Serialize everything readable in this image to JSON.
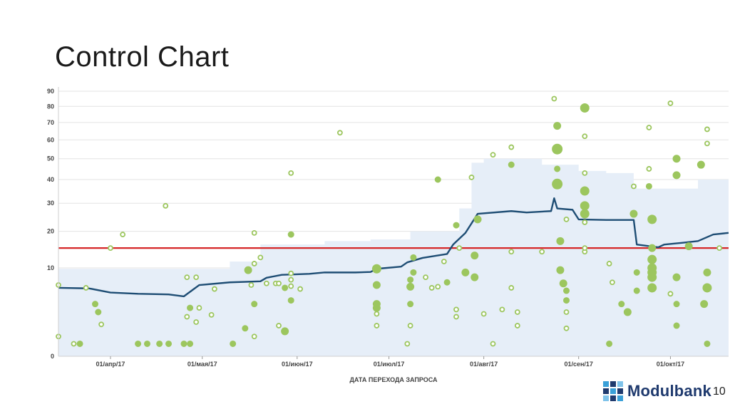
{
  "slide": {
    "title": "Control Chart",
    "page_number": "10",
    "brand": "Modulbank"
  },
  "colors": {
    "band": "#e6eef8",
    "rolling_line": "#1e4d74",
    "threshold": "#d62728",
    "point": "#9cc65e"
  },
  "chart_data": {
    "type": "scatter",
    "title": "",
    "xlabel": "ДАТА ПЕРЕХОДА ЗАПРОСА",
    "ylabel": "",
    "y_scale": "sqrt",
    "ylim": [
      0,
      90
    ],
    "xlim": [
      "2017-03-15",
      "2017-10-20"
    ],
    "y_ticks": [
      0,
      10,
      20,
      30,
      40,
      50,
      60,
      70,
      80,
      90
    ],
    "y_tick_labels": [
      "0",
      "10",
      "20",
      "30",
      "40",
      "50",
      "60",
      "70",
      "80",
      "90"
    ],
    "x_ticks": [
      "2017-04-01",
      "2017-05-01",
      "2017-06-01",
      "2017-07-01",
      "2017-08-01",
      "2017-09-01",
      "2017-10-01"
    ],
    "x_tick_labels": [
      "01/апр/17",
      "01/мая/17",
      "01/июн/17",
      "01/июл/17",
      "01/авг/17",
      "01/сен/17",
      "01/окт/17"
    ],
    "grid": true,
    "threshold": 15,
    "rolling_average": [
      [
        "2017-03-15",
        6.0
      ],
      [
        "2017-03-25",
        5.9
      ],
      [
        "2017-04-01",
        5.2
      ],
      [
        "2017-04-10",
        5.0
      ],
      [
        "2017-04-20",
        4.9
      ],
      [
        "2017-04-25",
        4.6
      ],
      [
        "2017-04-28",
        5.7
      ],
      [
        "2017-04-30",
        6.5
      ],
      [
        "2017-05-10",
        7.0
      ],
      [
        "2017-05-20",
        7.2
      ],
      [
        "2017-05-22",
        7.9
      ],
      [
        "2017-05-27",
        8.5
      ],
      [
        "2017-06-05",
        8.7
      ],
      [
        "2017-06-10",
        9.0
      ],
      [
        "2017-06-20",
        9.0
      ],
      [
        "2017-06-25",
        9.1
      ],
      [
        "2017-06-27",
        9.8
      ],
      [
        "2017-07-05",
        10.3
      ],
      [
        "2017-07-07",
        11.3
      ],
      [
        "2017-07-12",
        12.4
      ],
      [
        "2017-07-20",
        13.4
      ],
      [
        "2017-07-22",
        16.0
      ],
      [
        "2017-07-26",
        19.5
      ],
      [
        "2017-07-30",
        26.0
      ],
      [
        "2017-08-10",
        27.0
      ],
      [
        "2017-08-15",
        26.5
      ],
      [
        "2017-08-23",
        27.0
      ],
      [
        "2017-08-24",
        32.0
      ],
      [
        "2017-08-25",
        28.0
      ],
      [
        "2017-08-30",
        27.5
      ],
      [
        "2017-09-01",
        24.0
      ],
      [
        "2017-09-10",
        23.8
      ],
      [
        "2017-09-19",
        23.8
      ],
      [
        "2017-09-20",
        16.0
      ],
      [
        "2017-09-27",
        15.2
      ],
      [
        "2017-09-29",
        16.0
      ],
      [
        "2017-10-05",
        16.5
      ],
      [
        "2017-10-10",
        17.0
      ],
      [
        "2017-10-15",
        19.0
      ],
      [
        "2017-10-20",
        19.5
      ]
    ],
    "std_band": [
      [
        "2017-03-15",
        0,
        9.8
      ],
      [
        "2017-04-28",
        0,
        9.8
      ],
      [
        "2017-05-10",
        0,
        11.5
      ],
      [
        "2017-05-20",
        0,
        16.0
      ],
      [
        "2017-06-10",
        0,
        17.0
      ],
      [
        "2017-06-25",
        0,
        17.5
      ],
      [
        "2017-07-08",
        0,
        20.0
      ],
      [
        "2017-07-24",
        0,
        28.0
      ],
      [
        "2017-07-28",
        0,
        48.0
      ],
      [
        "2017-08-01",
        0,
        50.0
      ],
      [
        "2017-08-15",
        0,
        50.0
      ],
      [
        "2017-08-20",
        0,
        47.0
      ],
      [
        "2017-09-01",
        0,
        44.0
      ],
      [
        "2017-09-10",
        0,
        43.0
      ],
      [
        "2017-09-19",
        0,
        38.0
      ],
      [
        "2017-09-20",
        0,
        36.0
      ],
      [
        "2017-10-10",
        0,
        40.0
      ],
      [
        "2017-10-20",
        0,
        42.0
      ]
    ],
    "points": [
      [
        0.0,
        6.5,
        3
      ],
      [
        0.0,
        0.5,
        3
      ],
      [
        5,
        0.2,
        3
      ],
      [
        7,
        0.2,
        4
      ],
      [
        9,
        6.0,
        3
      ],
      [
        12,
        3.5,
        4
      ],
      [
        13,
        2.5,
        4
      ],
      [
        14,
        1.3,
        3
      ],
      [
        17,
        15.0,
        3
      ],
      [
        21,
        19.0,
        3
      ],
      [
        26,
        0.2,
        4
      ],
      [
        29,
        0.2,
        4
      ],
      [
        33,
        0.2,
        4
      ],
      [
        35,
        29.0,
        3
      ],
      [
        36,
        0.2,
        4
      ],
      [
        41,
        0.2,
        4
      ],
      [
        42,
        8.0,
        3
      ],
      [
        42,
        2.0,
        3
      ],
      [
        43,
        3.0,
        4
      ],
      [
        43,
        0.2,
        4
      ],
      [
        45,
        8.0,
        3
      ],
      [
        45,
        1.5,
        3
      ],
      [
        46,
        3.0,
        3
      ],
      [
        50,
        2.2,
        3
      ],
      [
        51,
        5.8,
        3
      ],
      [
        57,
        0.2,
        4
      ],
      [
        61,
        1.0,
        4
      ],
      [
        62,
        9.5,
        5
      ],
      [
        63,
        6.5,
        3
      ],
      [
        64,
        3.5,
        4
      ],
      [
        64,
        11.0,
        3
      ],
      [
        64,
        0.5,
        3
      ],
      [
        64,
        19.5,
        3
      ],
      [
        66,
        12.5,
        3
      ],
      [
        68,
        6.8,
        3
      ],
      [
        71,
        6.8,
        3
      ],
      [
        72,
        1.2,
        3
      ],
      [
        72,
        6.8,
        3
      ],
      [
        74,
        6.0,
        4
      ],
      [
        74,
        0.8,
        5
      ],
      [
        76,
        43.0,
        3
      ],
      [
        76,
        7.5,
        3
      ],
      [
        76,
        8.8,
        3
      ],
      [
        76,
        6.3,
        3
      ],
      [
        76,
        4.0,
        4
      ],
      [
        76,
        19.0,
        4
      ],
      [
        79,
        5.8,
        3
      ],
      [
        92,
        64.0,
        3
      ],
      [
        104,
        9.8,
        6
      ],
      [
        104,
        6.5,
        5
      ],
      [
        104,
        3.5,
        5
      ],
      [
        104,
        1.2,
        3
      ],
      [
        104,
        2.3,
        3
      ],
      [
        104,
        3.0,
        5
      ],
      [
        114,
        0.2,
        3
      ],
      [
        115,
        1.2,
        3
      ],
      [
        115,
        3.5,
        4
      ],
      [
        115,
        7.5,
        4
      ],
      [
        115,
        6.2,
        5
      ],
      [
        116,
        9.0,
        4
      ],
      [
        116,
        12.5,
        4
      ],
      [
        120,
        8.0,
        3
      ],
      [
        122,
        6.0,
        3
      ],
      [
        124,
        6.2,
        3
      ],
      [
        124,
        40.0,
        4
      ],
      [
        126,
        11.5,
        3
      ],
      [
        127,
        7.0,
        4
      ],
      [
        130,
        22.0,
        4
      ],
      [
        130,
        2.8,
        3
      ],
      [
        130,
        2.0,
        3
      ],
      [
        131,
        15.0,
        3
      ],
      [
        133,
        9.0,
        5
      ],
      [
        135,
        41.0,
        3
      ],
      [
        136,
        13.0,
        5
      ],
      [
        136,
        8.0,
        5
      ],
      [
        137,
        24.0,
        5
      ],
      [
        139,
        2.3,
        3
      ],
      [
        142,
        52.0,
        3
      ],
      [
        142,
        0.2,
        3
      ],
      [
        145,
        2.8,
        3
      ],
      [
        148,
        56.0,
        3
      ],
      [
        148,
        6.0,
        3
      ],
      [
        148,
        47.0,
        4
      ],
      [
        148,
        14.0,
        3
      ],
      [
        150,
        2.5,
        3
      ],
      [
        150,
        1.2,
        3
      ],
      [
        158,
        14.0,
        3
      ],
      [
        162,
        85.0,
        3
      ],
      [
        163,
        68.0,
        5
      ],
      [
        163,
        55.0,
        7
      ],
      [
        163,
        45.0,
        4
      ],
      [
        163,
        38.0,
        7
      ],
      [
        164,
        17.0,
        5
      ],
      [
        164,
        9.5,
        5
      ],
      [
        165,
        6.8,
        5
      ],
      [
        166,
        1.0,
        3
      ],
      [
        166,
        2.5,
        3
      ],
      [
        166,
        4.0,
        4
      ],
      [
        166,
        5.5,
        4
      ],
      [
        166,
        24.0,
        3
      ],
      [
        172,
        79.0,
        6
      ],
      [
        172,
        62.0,
        3
      ],
      [
        172,
        43.0,
        3
      ],
      [
        172,
        35.0,
        6
      ],
      [
        172,
        29.0,
        6
      ],
      [
        172,
        26.0,
        6
      ],
      [
        172,
        23.0,
        3
      ],
      [
        172,
        14.0,
        3
      ],
      [
        172,
        15.0,
        3
      ],
      [
        180,
        11.0,
        3
      ],
      [
        180,
        0.2,
        4
      ],
      [
        181,
        7.0,
        3
      ],
      [
        184,
        3.5,
        4
      ],
      [
        186,
        2.5,
        5
      ],
      [
        188,
        37.0,
        3
      ],
      [
        188,
        26.0,
        5
      ],
      [
        189,
        9.0,
        4
      ],
      [
        189,
        5.5,
        4
      ],
      [
        193,
        67.0,
        3
      ],
      [
        193,
        45.0,
        3
      ],
      [
        193,
        37.0,
        4
      ],
      [
        194,
        24.0,
        6
      ],
      [
        194,
        15.0,
        5
      ],
      [
        194,
        12.0,
        6
      ],
      [
        194,
        10.0,
        6
      ],
      [
        194,
        9.0,
        6
      ],
      [
        194,
        8.0,
        6
      ],
      [
        194,
        6.0,
        6
      ],
      [
        200,
        82.0,
        3
      ],
      [
        200,
        5.0,
        3
      ],
      [
        202,
        50.0,
        5
      ],
      [
        202,
        42.0,
        5
      ],
      [
        202,
        8.0,
        5
      ],
      [
        202,
        3.5,
        4
      ],
      [
        202,
        1.2,
        4
      ],
      [
        206,
        15.5,
        5
      ],
      [
        210,
        47.0,
        5
      ],
      [
        211,
        3.5,
        5
      ],
      [
        212,
        66.0,
        3
      ],
      [
        212,
        58.0,
        3
      ],
      [
        212,
        9.0,
        5
      ],
      [
        212,
        6.0,
        6
      ],
      [
        212,
        0.2,
        4
      ],
      [
        216,
        15.0,
        3
      ]
    ]
  }
}
